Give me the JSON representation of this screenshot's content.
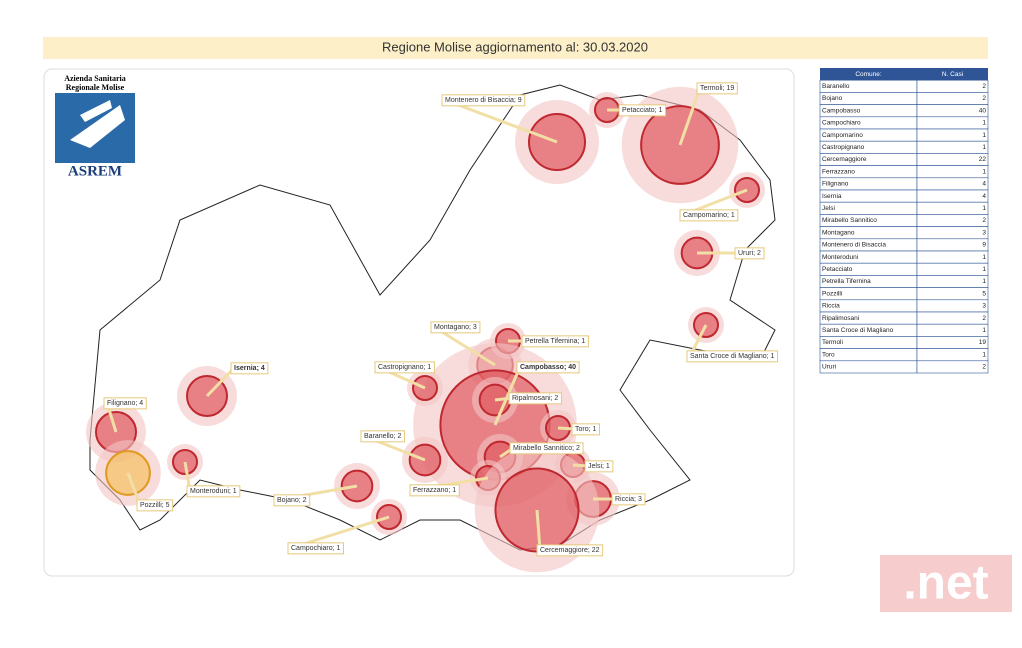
{
  "header": {
    "title": "Regione Molise aggiornamento al: 30.03.2020"
  },
  "logo": {
    "line1": "Azienda Sanitaria",
    "line2": "Regionale Molise",
    "name": "ASREM"
  },
  "map": {
    "labels": [
      "Termoli; 19",
      "Montenero di Bisaccia; 9",
      "Petacciato; 1",
      "Campomarino; 1",
      "Ururi; 2",
      "Santa Croce di Magliano; 1",
      "Montagano; 3",
      "Petrella Tifernina; 1",
      "Campobasso; 40",
      "Castropignano; 1",
      "Isernia; 4",
      "Ripalmosani; 2",
      "Filignano; 4",
      "Toro; 1",
      "Baranello; 2",
      "Mirabello Sannitico; 2",
      "Jelsi; 1",
      "Monteroduni; 1",
      "Riccia; 3",
      "Bojano; 2",
      "Ferrazzano; 1",
      "Pozzilli; 5",
      "Campochiaro; 1",
      "Cercemaggiore; 22"
    ]
  },
  "table": {
    "header": [
      "Comune:",
      "N. Casi"
    ],
    "rows": [
      [
        "Baranello",
        2
      ],
      [
        "Bojano",
        2
      ],
      [
        "Campobasso",
        40
      ],
      [
        "Campochiaro",
        1
      ],
      [
        "Campomarino",
        1
      ],
      [
        "Castropignano",
        1
      ],
      [
        "Cercemaggiore",
        22
      ],
      [
        "Ferrazzano",
        1
      ],
      [
        "Filignano",
        4
      ],
      [
        "Isernia",
        4
      ],
      [
        "Jelsi",
        1
      ],
      [
        "Mirabello Sannitico",
        2
      ],
      [
        "Montagano",
        3
      ],
      [
        "Montenero di Bisaccia",
        9
      ],
      [
        "Monteroduni",
        1
      ],
      [
        "Petacciato",
        1
      ],
      [
        "Petrella Tifernina",
        1
      ],
      [
        "Pozzilli",
        5
      ],
      [
        "Riccia",
        3
      ],
      [
        "Ripalimosani",
        2
      ],
      [
        "Santa Croce di Magliano",
        1
      ],
      [
        "Termoli",
        19
      ],
      [
        "Toro",
        1
      ],
      [
        "Ururi",
        2
      ]
    ]
  },
  "watermark": ".net"
}
